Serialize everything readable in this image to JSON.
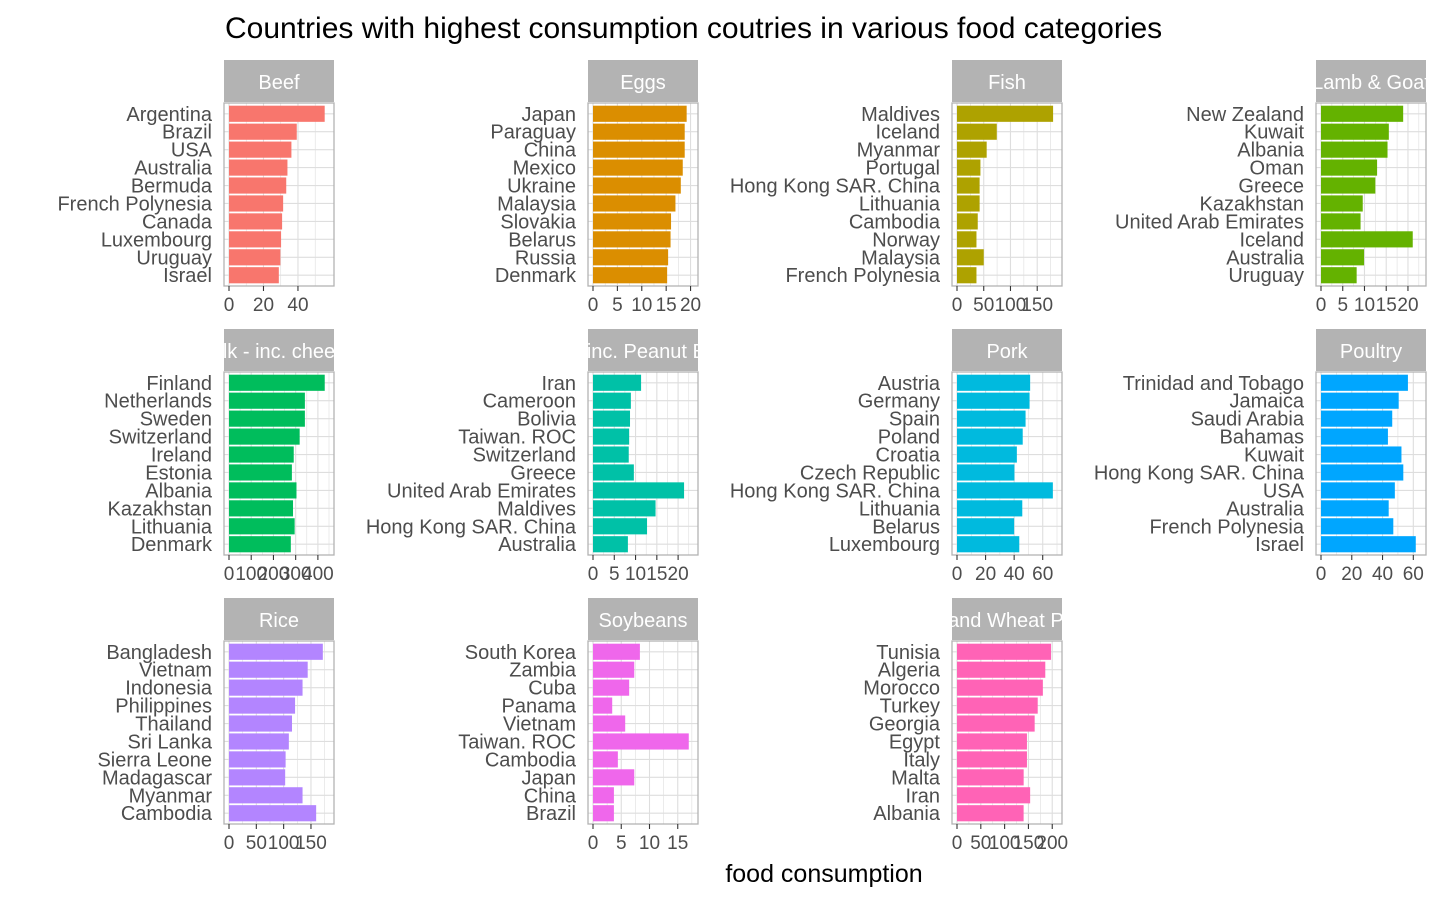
{
  "chart_data": {
    "type": "bar",
    "orientation": "horizontal",
    "title": "Countries with highest consumption coutries in various food categories",
    "xlabel": "food consumption",
    "ylabel": "",
    "grid": true,
    "legend": "none",
    "facets": [
      {
        "name": "Beef",
        "color": "#F8766D",
        "xlim": [
          0,
          58
        ],
        "ticks": [
          0,
          20,
          40
        ],
        "categories": [
          "Argentina",
          "Brazil",
          "USA",
          "Australia",
          "Bermuda",
          "French Polynesia",
          "Canada",
          "Luxembourg",
          "Uruguay",
          "Israel"
        ],
        "values": [
          55.5,
          39.3,
          36.2,
          33.9,
          33.2,
          31.4,
          30.8,
          30.2,
          29.8,
          28.9
        ]
      },
      {
        "name": "Eggs",
        "color": "#DB8E00",
        "xlim": [
          0,
          20.5
        ],
        "ticks": [
          0,
          5,
          10,
          15,
          20
        ],
        "categories": [
          "Japan",
          "Paraguay",
          "China",
          "Mexico",
          "Ukraine",
          "Malaysia",
          "Slovakia",
          "Belarus",
          "Russia",
          "Denmark"
        ],
        "values": [
          19.2,
          18.8,
          18.8,
          18.4,
          18.0,
          16.9,
          16.0,
          15.9,
          15.4,
          15.2
        ]
      },
      {
        "name": "Fish",
        "color": "#AEA200",
        "xlim": [
          0,
          187
        ],
        "ticks": [
          0,
          50,
          100,
          150
        ],
        "categories": [
          "Maldives",
          "Iceland",
          "Myanmar",
          "Portugal",
          "Hong Kong SAR. China",
          "Lithuania",
          "Cambodia",
          "Norway",
          "Malaysia",
          "French Polynesia"
        ],
        "values": [
          179.7,
          74.4,
          55.5,
          43.8,
          42.3,
          42.3,
          38.8,
          36.4,
          50.0,
          36.4
        ]
      },
      {
        "name": "Lamb & Goat",
        "color": "#64B200",
        "xlim": [
          0,
          23
        ],
        "ticks": [
          0,
          5,
          10,
          15,
          20
        ],
        "categories": [
          "New Zealand",
          "Kuwait",
          "Albania",
          "Oman",
          "Greece",
          "Kazakhstan",
          "United Arab Emirates",
          "Iceland",
          "Australia",
          "Uruguay"
        ],
        "values": [
          18.9,
          15.6,
          15.3,
          12.9,
          12.5,
          9.6,
          9.1,
          21.1,
          9.9,
          8.2
        ]
      },
      {
        "name": "Milk - inc. cheese",
        "color": "#00BD5C",
        "xlim": [
          0,
          450
        ],
        "ticks": [
          0,
          100,
          200,
          300,
          400
        ],
        "categories": [
          "Finland",
          "Netherlands",
          "Sweden",
          "Switzerland",
          "Ireland",
          "Estonia",
          "Albania",
          "Kazakhstan",
          "Lithuania",
          "Denmark"
        ],
        "values": [
          430.8,
          341.5,
          341.5,
          318.0,
          291.3,
          283.0,
          303.7,
          288.1,
          295.4,
          278.2
        ]
      },
      {
        "name": "Nuts inc. Peanut Butter",
        "color": "#00C1A7",
        "xlim": [
          0,
          23.5
        ],
        "ticks": [
          0,
          5,
          10,
          15,
          20
        ],
        "categories": [
          "Iran",
          "Cameroon",
          "Bolivia",
          "Taiwan. ROC",
          "Switzerland",
          "Greece",
          "United Arab Emirates",
          "Maldives",
          "Hong Kong SAR. China",
          "Australia"
        ],
        "values": [
          11.3,
          8.9,
          8.7,
          8.5,
          8.4,
          9.6,
          21.4,
          14.7,
          12.7,
          8.2
        ]
      },
      {
        "name": "Pork",
        "color": "#00BADE",
        "xlim": [
          0,
          70
        ],
        "ticks": [
          0,
          20,
          40,
          60
        ],
        "categories": [
          "Austria",
          "Germany",
          "Spain",
          "Poland",
          "Croatia",
          "Czech Republic",
          "Hong Kong SAR. China",
          "Lithuania",
          "Belarus",
          "Luxembourg"
        ],
        "values": [
          51.2,
          50.8,
          48.0,
          46.0,
          41.9,
          40.2,
          67.1,
          45.7,
          40.0,
          43.6
        ]
      },
      {
        "name": "Poultry",
        "color": "#00A6FF",
        "xlim": [
          0,
          65
        ],
        "ticks": [
          0,
          20,
          40,
          60
        ],
        "categories": [
          "Trinidad and Tobago",
          "Jamaica",
          "Saudi Arabia",
          "Bahamas",
          "Kuwait",
          "Hong Kong SAR. China",
          "USA",
          "Australia",
          "French Polynesia",
          "Israel"
        ],
        "values": [
          56.5,
          50.5,
          46.3,
          43.5,
          52.3,
          53.5,
          48.0,
          44.0,
          47.0,
          61.6
        ]
      },
      {
        "name": "Rice",
        "color": "#B385FF",
        "xlim": [
          0,
          183
        ],
        "ticks": [
          0,
          50,
          100,
          150
        ],
        "categories": [
          "Bangladesh",
          "Vietnam",
          "Indonesia",
          "Philippines",
          "Thailand",
          "Sri Lanka",
          "Sierra Leone",
          "Madagascar",
          "Myanmar",
          "Cambodia"
        ],
        "values": [
          171.7,
          144.0,
          134.6,
          120.9,
          115.3,
          109.5,
          103.6,
          102.8,
          134.6,
          159.5
        ]
      },
      {
        "name": "Soybeans",
        "color": "#EF67EB",
        "xlim": [
          0,
          17.7
        ],
        "ticks": [
          0,
          5,
          10,
          15
        ],
        "categories": [
          "South Korea",
          "Zambia",
          "Cuba",
          "Panama",
          "Vietnam",
          "Taiwan. ROC",
          "Cambodia",
          "Japan",
          "China",
          "Brazil"
        ],
        "values": [
          8.3,
          7.3,
          6.4,
          3.4,
          5.7,
          16.95,
          4.4,
          7.3,
          3.7,
          3.7
        ]
      },
      {
        "name": "Wheat and Wheat Products",
        "color": "#FF63B6",
        "xlim": [
          0,
          210
        ],
        "ticks": [
          0,
          50,
          100,
          150,
          200
        ],
        "categories": [
          "Tunisia",
          "Algeria",
          "Morocco",
          "Turkey",
          "Georgia",
          "Egypt",
          "Italy",
          "Malta",
          "Iran",
          "Albania"
        ],
        "values": [
          197.5,
          185.4,
          180.3,
          169.5,
          163.1,
          146.9,
          146.9,
          140.0,
          153.6,
          139.9
        ]
      }
    ]
  }
}
